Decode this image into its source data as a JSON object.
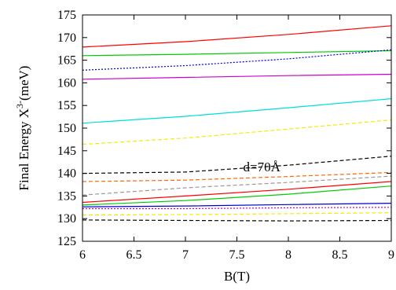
{
  "chart_data": {
    "type": "line",
    "xlabel": "B(T)",
    "ylabel": "Final Energy X",
    "ylabel_sup": "3-",
    "ylabel_unit": "(meV)",
    "xlim": [
      6,
      9
    ],
    "ylim": [
      125,
      175
    ],
    "xticks": [
      "6",
      "6.5",
      "7",
      "7.5",
      "8",
      "8.5",
      "9"
    ],
    "yticks": [
      "125",
      "130",
      "135",
      "140",
      "145",
      "150",
      "155",
      "160",
      "165",
      "170",
      "175"
    ],
    "grid": false,
    "annotations": [
      {
        "text": "d=70Å",
        "x": 7.5,
        "y": 141.5
      }
    ],
    "series": [
      {
        "color": "#ff0000",
        "dash": "solid",
        "x": [
          6,
          7,
          8,
          9
        ],
        "y": [
          167.9,
          169.1,
          170.7,
          172.6
        ]
      },
      {
        "color": "#00cc00",
        "dash": "solid",
        "x": [
          6,
          7,
          8,
          9
        ],
        "y": [
          166.0,
          166.3,
          166.7,
          167.1
        ]
      },
      {
        "color": "#0000cc",
        "dash": "dotted",
        "x": [
          6,
          7,
          8,
          9
        ],
        "y": [
          162.8,
          163.8,
          165.3,
          167.3
        ]
      },
      {
        "color": "#cc00cc",
        "dash": "solid",
        "x": [
          6,
          7,
          8,
          9
        ],
        "y": [
          160.8,
          161.2,
          161.6,
          161.9
        ]
      },
      {
        "color": "#00dddd",
        "dash": "solid",
        "x": [
          6,
          7,
          8,
          9
        ],
        "y": [
          151.1,
          152.6,
          154.5,
          156.5
        ]
      },
      {
        "color": "#eeee00",
        "dash": "dashed",
        "x": [
          6,
          7,
          8,
          9
        ],
        "y": [
          146.4,
          147.8,
          149.8,
          151.8
        ]
      },
      {
        "color": "#000000",
        "dash": "dashed",
        "x": [
          6,
          7,
          8,
          9
        ],
        "y": [
          140.0,
          140.3,
          141.8,
          143.8
        ]
      },
      {
        "color": "#ff6600",
        "dash": "dashed",
        "x": [
          6,
          7,
          8,
          9
        ],
        "y": [
          138.2,
          138.5,
          139.3,
          140.2
        ]
      },
      {
        "color": "#999999",
        "dash": "dashed",
        "x": [
          6,
          7,
          8,
          9
        ],
        "y": [
          135.2,
          136.8,
          138.0,
          139.4
        ]
      },
      {
        "color": "#ff0000",
        "dash": "solid",
        "x": [
          6,
          7,
          8,
          9
        ],
        "y": [
          133.6,
          135.0,
          136.5,
          138.2
        ]
      },
      {
        "color": "#00cc00",
        "dash": "solid",
        "x": [
          6,
          7,
          8,
          9
        ],
        "y": [
          133.0,
          134.0,
          135.4,
          137.2
        ]
      },
      {
        "color": "#0000cc",
        "dash": "solid",
        "x": [
          6,
          7,
          8,
          9
        ],
        "y": [
          132.6,
          132.8,
          133.1,
          133.4
        ]
      },
      {
        "color": "#cc00cc",
        "dash": "dotted",
        "x": [
          6,
          7,
          8,
          9
        ],
        "y": [
          132.2,
          132.2,
          132.4,
          132.5
        ]
      },
      {
        "color": "#eeee00",
        "dash": "dashed",
        "x": [
          6,
          7,
          8,
          9
        ],
        "y": [
          130.8,
          130.9,
          131.1,
          131.3
        ]
      },
      {
        "color": "#000000",
        "dash": "dashed",
        "x": [
          6,
          7,
          8,
          9
        ],
        "y": [
          129.7,
          129.6,
          129.5,
          129.6
        ]
      }
    ]
  }
}
